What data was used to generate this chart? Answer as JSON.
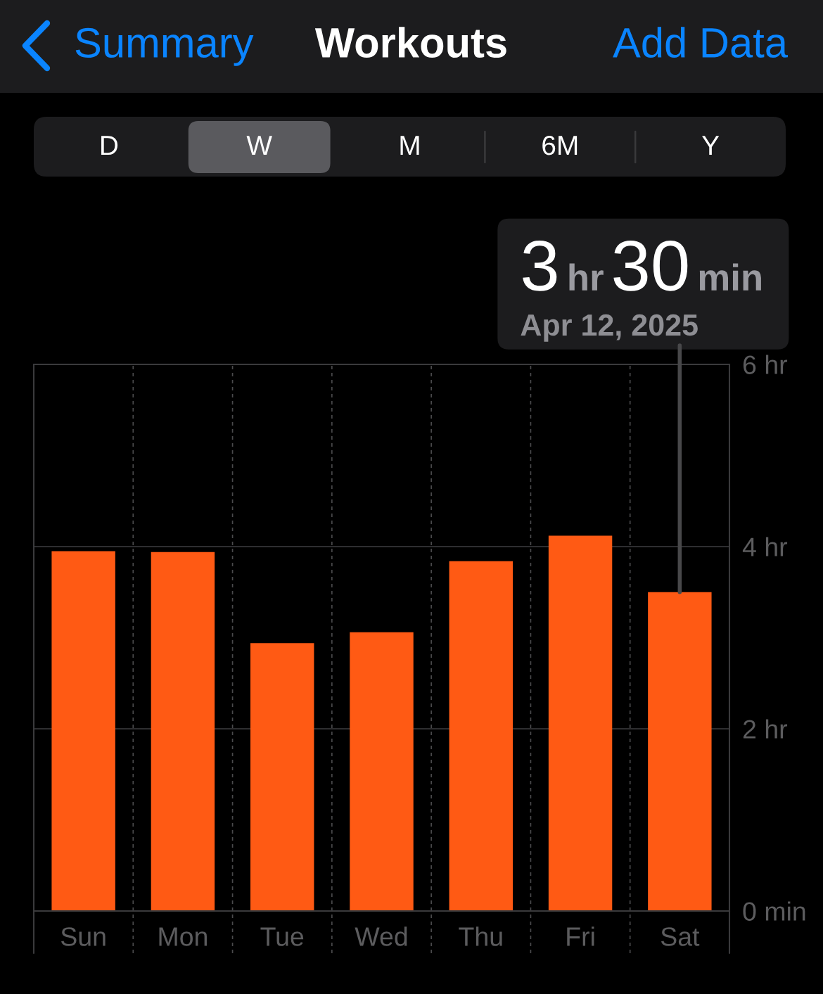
{
  "chart_data": {
    "type": "bar",
    "title": "Workouts",
    "categories": [
      "Sun",
      "Mon",
      "Tue",
      "Wed",
      "Thu",
      "Fri",
      "Sat"
    ],
    "values": [
      3.95,
      3.94,
      2.94,
      3.06,
      3.84,
      4.12,
      3.5
    ],
    "color": "#ff5a14",
    "ylim": [
      0,
      6
    ],
    "yticks": [
      {
        "value": 0,
        "label": "0 min"
      },
      {
        "value": 2,
        "label": "2 hr"
      },
      {
        "value": 4,
        "label": "4 hr"
      },
      {
        "value": 6,
        "label": "6 hr"
      }
    ],
    "grid": true,
    "annotations": [
      "Summary",
      "Add Data",
      "D",
      "W",
      "M",
      "6M",
      "Y",
      {
        "text": "3 hr 30 min",
        "x": "Sat",
        "y": 3.5
      },
      {
        "text": "Apr 12, 2025",
        "x": "Sat",
        "y": 3.5
      }
    ]
  }
}
